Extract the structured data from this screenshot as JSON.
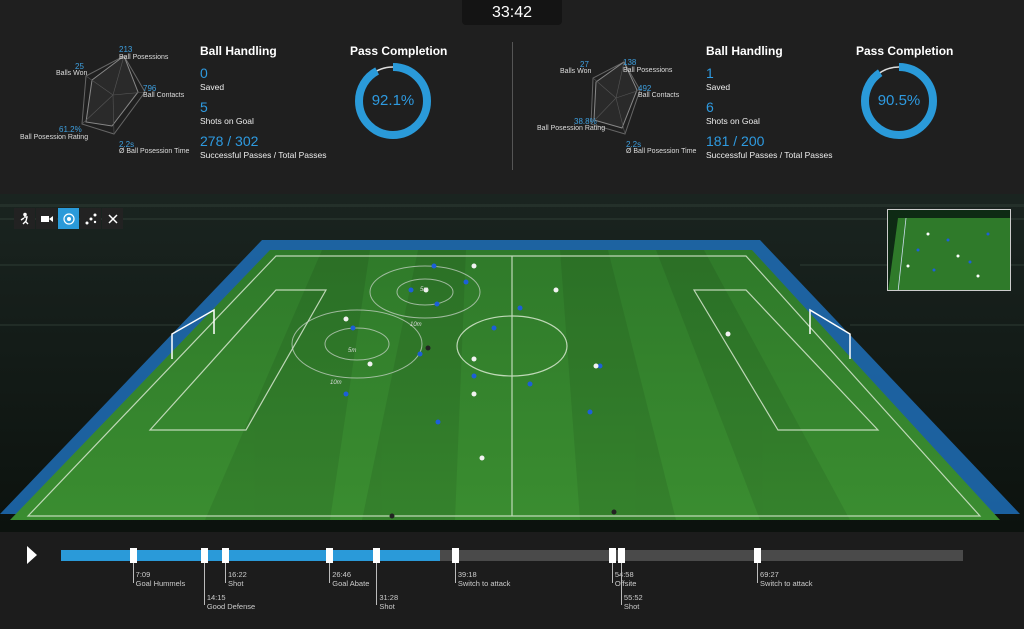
{
  "clock": "33:42",
  "teams": [
    {
      "radar": {
        "ball_possessions": {
          "value": "213",
          "label": "Ball Posessions"
        },
        "balls_won": {
          "value": "25",
          "label": "Balls Won"
        },
        "ball_contacts": {
          "value": "796",
          "label": "Ball Contacts"
        },
        "possession_rating": {
          "value": "61.2%",
          "label": "Ball Posession Rating"
        },
        "possession_time": {
          "value": "2.2s",
          "label": "Ø Ball Posession Time"
        }
      },
      "ball_handling": {
        "title": "Ball Handling",
        "saved_value": "0",
        "saved_label": "Saved",
        "shots_value": "5",
        "shots_label": "Shots on Goal",
        "passes_value": "278 / 302",
        "passes_label": "Successful Passes / Total Passes"
      },
      "pass_completion": {
        "title": "Pass Completion",
        "value_text": "92.1%",
        "value": 0.921
      }
    },
    {
      "radar": {
        "ball_possessions": {
          "value": "138",
          "label": "Ball Posessions"
        },
        "balls_won": {
          "value": "27",
          "label": "Balls Won"
        },
        "ball_contacts": {
          "value": "492",
          "label": "Ball Contacts"
        },
        "possession_rating": {
          "value": "38.8%",
          "label": "Ball Posession Rating"
        },
        "possession_time": {
          "value": "2.2s",
          "label": "Ø Ball Posession Time"
        }
      },
      "ball_handling": {
        "title": "Ball Handling",
        "saved_value": "1",
        "saved_label": "Saved",
        "shots_value": "6",
        "shots_label": "Shots on Goal",
        "passes_value": "181 / 200",
        "passes_label": "Successful Passes / Total Passes"
      },
      "pass_completion": {
        "title": "Pass Completion",
        "value_text": "90.5%",
        "value": 0.905
      }
    }
  ],
  "pitch": {
    "zone_labels": [
      "5m",
      "10m",
      "5m",
      "10m"
    ]
  },
  "toolbar": {
    "icons": [
      "player-icon",
      "camera-icon",
      "target-icon",
      "formation-icon",
      "close-icon"
    ],
    "active": "target-icon"
  },
  "timeline": {
    "progress": 0.42,
    "events": [
      {
        "time": "7:09",
        "label": "Goal Hummels"
      },
      {
        "time": "14:15",
        "label": "Good Defense"
      },
      {
        "time": "16:22",
        "label": "Shot"
      },
      {
        "time": "26:46",
        "label": "Goal Abate"
      },
      {
        "time": "31:28",
        "label": "Shot"
      },
      {
        "time": "39:18",
        "label": "Switch to attack"
      },
      {
        "time": "54:58",
        "label": "Offsite"
      },
      {
        "time": "55:52",
        "label": "Shot"
      },
      {
        "time": "69:27",
        "label": "Switch to attack"
      }
    ]
  },
  "colors": {
    "accent": "#2a9ad9",
    "pitch": "#2f8a2c",
    "track": "#4a4a4a"
  }
}
